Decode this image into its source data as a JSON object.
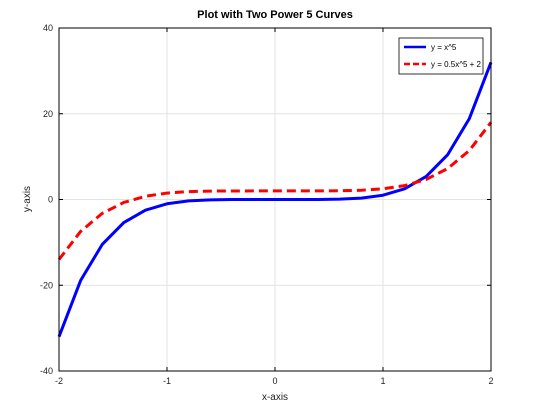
{
  "chart_data": {
    "type": "line",
    "title": "Plot with Two Power 5 Curves",
    "xlabel": "x-axis",
    "ylabel": "y-axis",
    "xlim": [
      -2,
      2
    ],
    "ylim": [
      -40,
      40
    ],
    "xticks": [
      -2,
      -1,
      0,
      1,
      2
    ],
    "yticks": [
      -40,
      -20,
      0,
      20,
      40
    ],
    "grid": true,
    "legend_position": "top-right",
    "x": [
      -2.0,
      -1.8,
      -1.6,
      -1.4,
      -1.2,
      -1.0,
      -0.8,
      -0.6,
      -0.4,
      -0.2,
      0.0,
      0.2,
      0.4,
      0.6,
      0.8,
      1.0,
      1.2,
      1.4,
      1.6,
      1.8,
      2.0
    ],
    "series": [
      {
        "name": "y = x^5",
        "color": "#0000ff",
        "style": "solid",
        "values": [
          -32.0,
          -18.9,
          -10.49,
          -5.38,
          -2.49,
          -1.0,
          -0.33,
          -0.08,
          -0.01,
          0.0,
          0.0,
          0.0,
          0.01,
          0.08,
          0.33,
          1.0,
          2.49,
          5.38,
          10.49,
          18.9,
          32.0
        ]
      },
      {
        "name": "y = 0.5x^5 + 2",
        "color": "#ff0000",
        "style": "dashed",
        "values": [
          -14.0,
          -7.45,
          -3.24,
          -0.69,
          0.76,
          1.5,
          1.84,
          1.96,
          1.99,
          2.0,
          2.0,
          2.0,
          2.01,
          2.04,
          2.16,
          2.5,
          3.24,
          4.69,
          7.24,
          11.45,
          18.0
        ]
      }
    ]
  }
}
